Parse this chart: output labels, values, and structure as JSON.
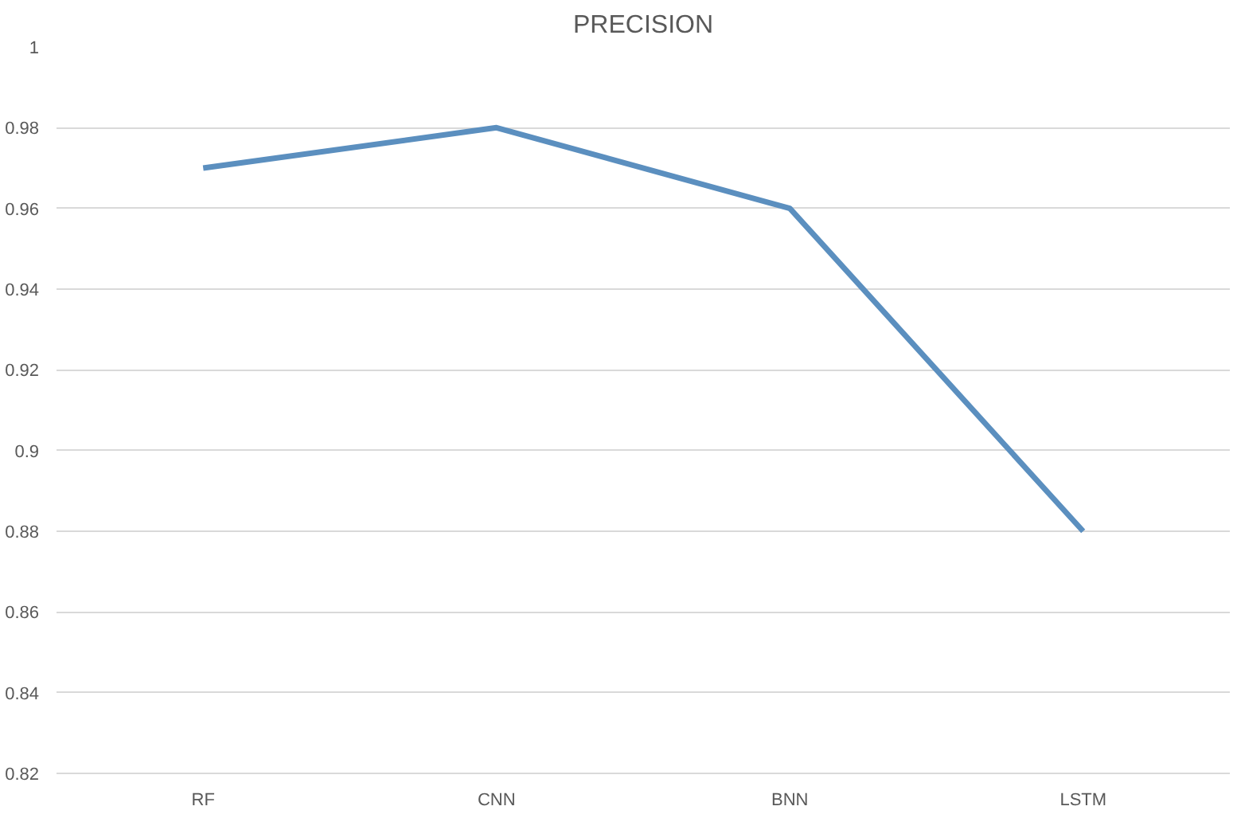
{
  "chart_data": {
    "type": "line",
    "title": "PRECISION",
    "categories": [
      "RF",
      "CNN",
      "BNN",
      "LSTM"
    ],
    "series": [
      {
        "color": "#5b8fbf",
        "values": [
          0.97,
          0.98,
          0.96,
          0.88
        ]
      }
    ],
    "ylim": [
      0.82,
      1.0
    ],
    "yticks": [
      0.82,
      0.84,
      0.86,
      0.88,
      0.9,
      0.92,
      0.94,
      0.96,
      0.98,
      1
    ],
    "grid": "y",
    "marker": "none",
    "line_style": "solid"
  }
}
